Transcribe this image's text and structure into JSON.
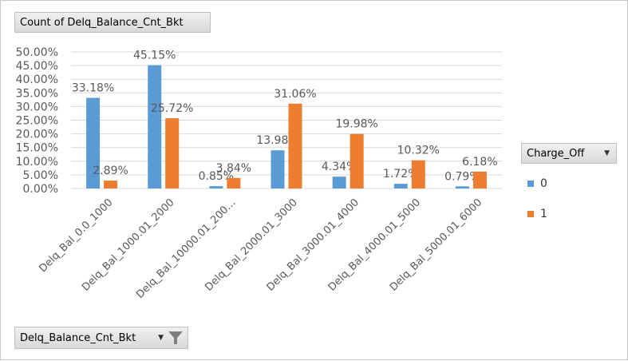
{
  "value_field_label": "Count of Delq_Balance_Cnt_Bkt",
  "legend_field_label": "Charge_Off",
  "axis_field_label": "Delq_Balance_Cnt_Bkt",
  "colors": {
    "series0": "#5b9bd5",
    "series1": "#ed7d31",
    "grid": "#d9d9d9",
    "label": "#595959"
  },
  "chart_data": {
    "type": "bar",
    "categories": [
      "Delq_Bal_0.0_1000",
      "Delq_Bal_1000.01_2000",
      "Delq_Bal_10000.01_200…",
      "Delq_Bal_2000.01_3000",
      "Delq_Bal_3000.01_4000",
      "Delq_Bal_4000.01_5000",
      "Delq_Bal_5000.01_6000"
    ],
    "series": [
      {
        "name": "0",
        "values": [
          33.18,
          45.15,
          0.85,
          13.98,
          4.34,
          1.72,
          0.79
        ],
        "labels": [
          "33.18%",
          "45.15%",
          "0.85%",
          "13.98%",
          "4.34%",
          "1.72%",
          "0.79%"
        ]
      },
      {
        "name": "1",
        "values": [
          2.89,
          25.72,
          3.84,
          31.06,
          19.98,
          10.32,
          6.18
        ],
        "labels": [
          "2.89%",
          "25.72%",
          "3.84%",
          "31.06%",
          "19.98%",
          "10.32%",
          "6.18%"
        ]
      }
    ],
    "ylim": [
      0,
      50
    ],
    "yticks": [
      "0.00%",
      "5.00%",
      "10.00%",
      "15.00%",
      "20.00%",
      "25.00%",
      "30.00%",
      "35.00%",
      "40.00%",
      "45.00%",
      "50.00%"
    ],
    "grid": true,
    "legend_position": "right"
  }
}
